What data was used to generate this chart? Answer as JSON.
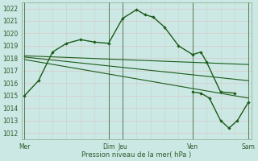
{
  "background_color": "#cce8e4",
  "grid_color_major": "#c8d8c8",
  "grid_color_minor": "#dde8dd",
  "line_color": "#1a5c1a",
  "ylim": [
    1011.5,
    1022.5
  ],
  "yticks": [
    1012,
    1013,
    1014,
    1015,
    1016,
    1017,
    1018,
    1019,
    1020,
    1021,
    1022
  ],
  "xlabel": "Pression niveau de la mer( hPa )",
  "xtick_positions": [
    0,
    3,
    3.5,
    6,
    8
  ],
  "xtick_labels": [
    "Mer",
    "Dim",
    "Jeu",
    "Ven",
    "Sam"
  ],
  "vlines_x": [
    0,
    3,
    3.5,
    6,
    8
  ],
  "main_line_x": [
    0,
    0.5,
    1.0,
    1.5,
    2.0,
    2.5,
    3.0,
    3.5,
    4.0,
    4.3,
    4.6,
    5.0,
    5.5,
    6.0,
    6.3,
    6.5,
    7.0,
    7.5,
    8.0
  ],
  "main_line_y": [
    1015.0,
    1016.2,
    1018.5,
    1019.2,
    1019.5,
    1019.3,
    1019.2,
    1021.2,
    1021.9,
    1021.5,
    1021.3,
    1020.5,
    1019.0,
    1018.3,
    1018.5,
    1017.7,
    1015.3,
    1015.2,
    null
  ],
  "flat_line1_x": [
    0,
    8
  ],
  "flat_line1_y": [
    1018.2,
    1017.5
  ],
  "flat_line2_x": [
    0,
    8
  ],
  "flat_line2_y": [
    1018.1,
    1016.2
  ],
  "flat_line3_x": [
    0,
    8
  ],
  "flat_line3_y": [
    1017.9,
    1014.8
  ],
  "tail_line_x": [
    6.0,
    6.3,
    6.6,
    7.0,
    7.3,
    7.6,
    8.0
  ],
  "tail_line_y": [
    1015.3,
    1015.2,
    1014.8,
    1013.0,
    1012.4,
    1013.0,
    1014.5
  ]
}
